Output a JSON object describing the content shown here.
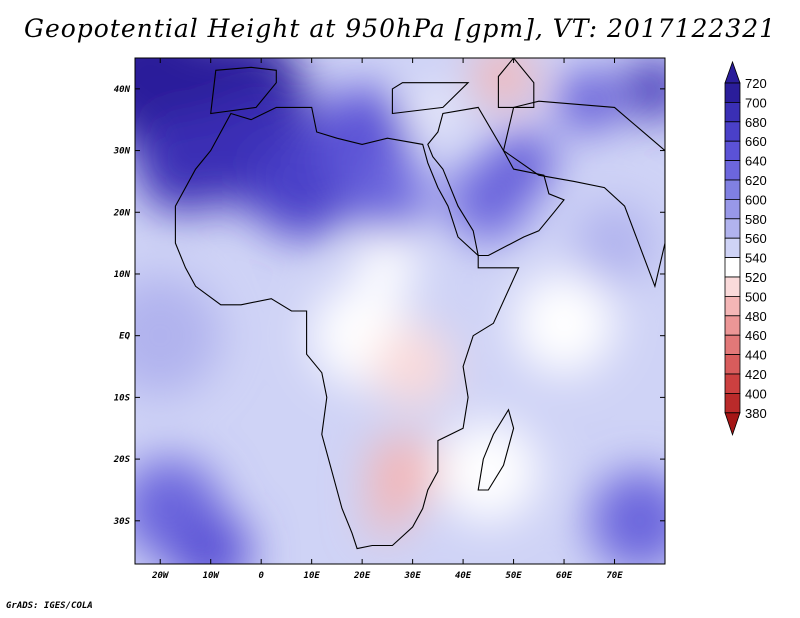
{
  "title": "Geopotential Height at 950hPa [gpm], VT: 2017122321",
  "footer": "GrADS: IGES/COLA",
  "map": {
    "lon_range": [
      -25,
      80
    ],
    "lat_range": [
      -37,
      45
    ],
    "lon_ticks": [
      {
        "value": -20,
        "label": "20W"
      },
      {
        "value": -10,
        "label": "10W"
      },
      {
        "value": 0,
        "label": "0"
      },
      {
        "value": 10,
        "label": "10E"
      },
      {
        "value": 20,
        "label": "20E"
      },
      {
        "value": 30,
        "label": "30E"
      },
      {
        "value": 40,
        "label": "40E"
      },
      {
        "value": 50,
        "label": "50E"
      },
      {
        "value": 60,
        "label": "60E"
      },
      {
        "value": 70,
        "label": "70E"
      }
    ],
    "lat_ticks": [
      {
        "value": 40,
        "label": "40N"
      },
      {
        "value": 30,
        "label": "30N"
      },
      {
        "value": 20,
        "label": "20N"
      },
      {
        "value": 10,
        "label": "10N"
      },
      {
        "value": 0,
        "label": "EQ"
      },
      {
        "value": -10,
        "label": "10S"
      },
      {
        "value": -20,
        "label": "20S"
      },
      {
        "value": -30,
        "label": "30S"
      }
    ]
  },
  "colorbar": {
    "levels": [
      "720",
      "700",
      "680",
      "660",
      "640",
      "620",
      "600",
      "580",
      "560",
      "540",
      "520",
      "500",
      "480",
      "460",
      "440",
      "420",
      "400",
      "380"
    ],
    "colors": [
      "#2a1d9a",
      "#3a2fb5",
      "#4a40c8",
      "#5b52d6",
      "#6c66dd",
      "#8080e2",
      "#9898e8",
      "#b1b3ee",
      "#cfd3f6",
      "#ffffff",
      "#fadada",
      "#f4b6b6",
      "#ec9696",
      "#e27878",
      "#d85c5c",
      "#cc4040",
      "#ba2a2a",
      "#a51616"
    ]
  },
  "field_blobs": [
    {
      "lon": -22,
      "lat": 42,
      "r": 14,
      "val": 715
    },
    {
      "lon": -5,
      "lat": 38,
      "r": 14,
      "val": 700
    },
    {
      "lon": 0,
      "lat": 30,
      "r": 12,
      "val": 690
    },
    {
      "lon": -15,
      "lat": 28,
      "r": 10,
      "val": 685
    },
    {
      "lon": 8,
      "lat": 24,
      "r": 10,
      "val": 665
    },
    {
      "lon": 20,
      "lat": 32,
      "r": 10,
      "val": 650
    },
    {
      "lon": 25,
      "lat": 22,
      "r": 8,
      "val": 620
    },
    {
      "lon": 45,
      "lat": 22,
      "r": 8,
      "val": 630
    },
    {
      "lon": 52,
      "lat": 28,
      "r": 6,
      "val": 640
    },
    {
      "lon": 65,
      "lat": 38,
      "r": 6,
      "val": 655
    },
    {
      "lon": 78,
      "lat": 40,
      "r": 6,
      "val": 680
    },
    {
      "lon": 48,
      "lat": 42,
      "r": 6,
      "val": 490
    },
    {
      "lon": 33,
      "lat": 36,
      "r": 4,
      "val": 530
    },
    {
      "lon": 25,
      "lat": 12,
      "r": 6,
      "val": 525
    },
    {
      "lon": 20,
      "lat": 0,
      "r": 10,
      "val": 520
    },
    {
      "lon": 30,
      "lat": -5,
      "r": 8,
      "val": 515
    },
    {
      "lon": 28,
      "lat": -22,
      "r": 7,
      "val": 498
    },
    {
      "lon": 25,
      "lat": -29,
      "r": 4,
      "val": 485
    },
    {
      "lon": 45,
      "lat": -22,
      "r": 10,
      "val": 525
    },
    {
      "lon": 60,
      "lat": 2,
      "r": 10,
      "val": 530
    },
    {
      "lon": -20,
      "lat": 0,
      "r": 12,
      "val": 570
    },
    {
      "lon": -18,
      "lat": -28,
      "r": 10,
      "val": 630
    },
    {
      "lon": -10,
      "lat": -35,
      "r": 8,
      "val": 650
    },
    {
      "lon": 75,
      "lat": -30,
      "r": 10,
      "val": 620
    },
    {
      "lon": 70,
      "lat": 15,
      "r": 8,
      "val": 575
    }
  ]
}
